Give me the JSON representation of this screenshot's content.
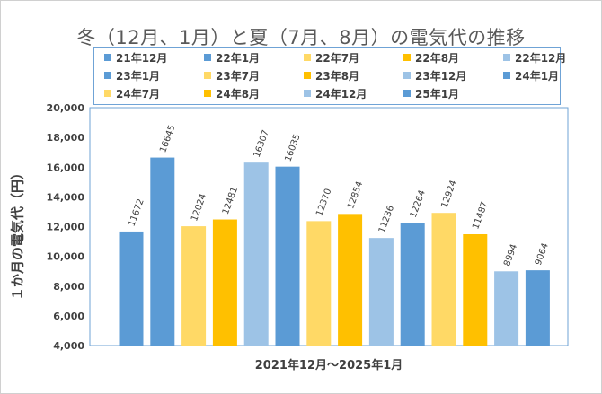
{
  "chart_data": {
    "type": "bar",
    "title": "冬（12月、1月）と夏（7月、8月）の電気代の推移",
    "xlabel": "2021年12月～2025年1月",
    "ylabel": "１か月の電気代（円）",
    "ylim": [
      4000,
      20000
    ],
    "yticks": [
      "4,000",
      "6,000",
      "8,000",
      "10,000",
      "12,000",
      "14,000",
      "16,000",
      "18,000",
      "20,000"
    ],
    "grid": false,
    "legend_position": "top",
    "categories": [
      "21年12月",
      "22年1月",
      "22年7月",
      "22年8月",
      "22年12月",
      "23年1月",
      "23年7月",
      "23年8月",
      "23年12月",
      "24年1月",
      "24年7月",
      "24年8月",
      "24年12月",
      "25年1月"
    ],
    "values": [
      11672,
      16645,
      12024,
      12481,
      16307,
      16035,
      12370,
      12854,
      11236,
      12264,
      12924,
      11487,
      8994,
      9064
    ],
    "colors": [
      "#5b9bd5",
      "#5b9bd5",
      "#ffd966",
      "#ffc000",
      "#9dc3e6",
      "#5b9bd5",
      "#ffd966",
      "#ffc000",
      "#9dc3e6",
      "#5b9bd5",
      "#ffd966",
      "#ffc000",
      "#9dc3e6",
      "#5b9bd5"
    ]
  },
  "plot_border_color": "#6fa3d6"
}
